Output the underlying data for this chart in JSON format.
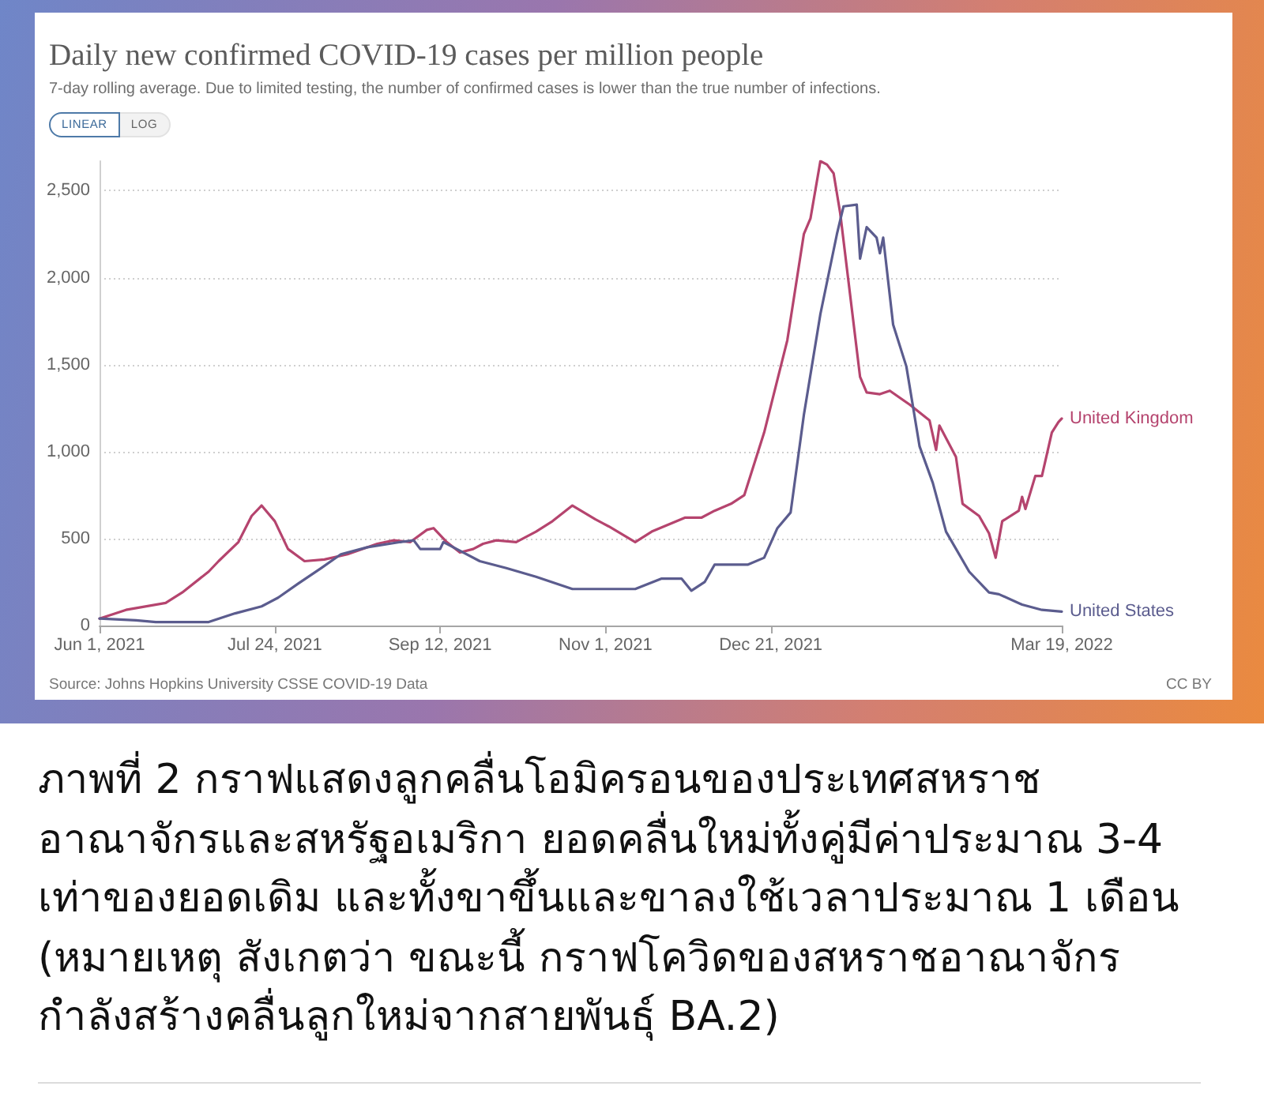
{
  "chart_data": {
    "type": "line",
    "title": "Daily new confirmed COVID-19 cases per million people",
    "subtitle": "7-day rolling average. Due to limited testing, the number of confirmed cases is lower than the true number of infections.",
    "annotations": [
      "LINEAR",
      "LOG",
      "Source: Johns Hopkins University CSSE COVID-19 Data",
      "CC BY",
      "ภาพที่ 2 กราฟแสดงลูกคลื่นโอมิครอนของประเทศสหราช\nอาณาจักรและสหรัฐอเมริกา ยอดคลื่นใหม่ทั้งคู่มีค่าประมาณ 3-4\nเท่าของยอดเดิม และทั้งขาขึ้นและขาลงใช้เวลาประมาณ 1 เดือน\n(หมายเหตุ สังเกตว่า ขณะนี้ กราฟโควิดของสหราชอาณาจักร\nกำลังสร้างคลื่นลูกใหม่จากสายพันธุ์ BA.2)"
    ],
    "xlim": [
      "2021-06-01",
      "2022-03-19"
    ],
    "xticks": [
      {
        "value": "2021-06-01",
        "label": "Jun 1, 2021"
      },
      {
        "value": "2021-07-24",
        "label": "Jul 24, 2021"
      },
      {
        "value": "2021-09-12",
        "label": "Sep 12, 2021"
      },
      {
        "value": "2021-11-01",
        "label": "Nov 1, 2021"
      },
      {
        "value": "2021-12-21",
        "label": "Dec 21, 2021"
      },
      {
        "value": "2022-03-19",
        "label": "Mar 19, 2022"
      }
    ],
    "ylim": [
      0,
      2670
    ],
    "yticks": [
      0,
      500,
      {
        "value": 1000,
        "label": "1,000"
      },
      {
        "value": 1500,
        "label": "1,500"
      },
      {
        "value": 2000,
        "label": "2,000"
      },
      {
        "value": 2500,
        "label": "2,500"
      }
    ],
    "grid": "y",
    "marker": "none",
    "line_style": "solid",
    "series": [
      {
        "name": "United Kingdom",
        "color": "#b5446e",
        "x": [
          "2021-06-01",
          "2021-06-09",
          "2021-06-21",
          "2021-06-26",
          "2021-07-04",
          "2021-07-07",
          "2021-07-13",
          "2021-07-17",
          "2021-07-20",
          "2021-07-24",
          "2021-07-28",
          "2021-08-02",
          "2021-08-08",
          "2021-08-15",
          "2021-08-24",
          "2021-08-29",
          "2021-09-03",
          "2021-09-08",
          "2021-09-10",
          "2021-09-14",
          "2021-09-18",
          "2021-09-22",
          "2021-09-25",
          "2021-09-29",
          "2021-10-05",
          "2021-10-11",
          "2021-10-16",
          "2021-10-22",
          "2021-10-29",
          "2021-11-02",
          "2021-11-10",
          "2021-11-15",
          "2021-11-25",
          "2021-11-30",
          "2021-12-04",
          "2021-12-09",
          "2021-12-13",
          "2021-12-19",
          "2021-12-26",
          "2021-12-31",
          "2022-01-02",
          "2022-01-05",
          "2022-01-07",
          "2022-01-09",
          "2022-01-11",
          "2022-01-17",
          "2022-01-19",
          "2022-01-23",
          "2022-01-26",
          "2022-02-01",
          "2022-02-07",
          "2022-02-09",
          "2022-02-10",
          "2022-02-15",
          "2022-02-17",
          "2022-02-22",
          "2022-02-25",
          "2022-02-27",
          "2022-03-01",
          "2022-03-06",
          "2022-03-07",
          "2022-03-08",
          "2022-03-11",
          "2022-03-13",
          "2022-03-16",
          "2022-03-18",
          "2022-03-19"
        ],
        "values": [
          40,
          90,
          130,
          190,
          310,
          370,
          480,
          630,
          690,
          600,
          440,
          370,
          380,
          410,
          470,
          490,
          480,
          550,
          560,
          480,
          420,
          440,
          470,
          490,
          480,
          540,
          600,
          690,
          610,
          570,
          480,
          540,
          620,
          620,
          660,
          700,
          750,
          1110,
          1640,
          2250,
          2340,
          2670,
          2650,
          2600,
          2370,
          1430,
          1340,
          1330,
          1350,
          1270,
          1180,
          1010,
          1150,
          970,
          700,
          630,
          530,
          390,
          600,
          660,
          740,
          670,
          860,
          860,
          1110,
          1170,
          1190
        ]
      },
      {
        "name": "United States",
        "color": "#5b5c8e",
        "x": [
          "2021-06-01",
          "2021-06-12",
          "2021-06-18",
          "2021-07-04",
          "2021-07-12",
          "2021-07-20",
          "2021-07-25",
          "2021-07-31",
          "2021-08-07",
          "2021-08-13",
          "2021-08-21",
          "2021-08-31",
          "2021-09-04",
          "2021-09-06",
          "2021-09-12",
          "2021-09-13",
          "2021-09-17",
          "2021-09-24",
          "2021-10-02",
          "2021-10-11",
          "2021-10-22",
          "2021-11-01",
          "2021-11-10",
          "2021-11-18",
          "2021-11-24",
          "2021-11-27",
          "2021-12-01",
          "2021-12-04",
          "2021-12-14",
          "2021-12-19",
          "2021-12-23",
          "2021-12-27",
          "2021-12-31",
          "2022-01-05",
          "2022-01-10",
          "2022-01-12",
          "2022-01-16",
          "2022-01-17",
          "2022-01-19",
          "2022-01-22",
          "2022-01-23",
          "2022-01-24",
          "2022-01-27",
          "2022-01-31",
          "2022-02-04",
          "2022-02-08",
          "2022-02-12",
          "2022-02-19",
          "2022-02-25",
          "2022-02-28",
          "2022-03-07",
          "2022-03-13",
          "2022-03-19"
        ],
        "values": [
          40,
          30,
          20,
          20,
          70,
          110,
          160,
          240,
          330,
          410,
          450,
          480,
          490,
          440,
          440,
          480,
          440,
          370,
          330,
          280,
          210,
          210,
          210,
          270,
          270,
          200,
          250,
          350,
          350,
          390,
          560,
          650,
          1210,
          1790,
          2250,
          2410,
          2420,
          2110,
          2290,
          2230,
          2140,
          2230,
          1730,
          1490,
          1030,
          820,
          540,
          310,
          190,
          180,
          120,
          90,
          80
        ]
      }
    ]
  }
}
